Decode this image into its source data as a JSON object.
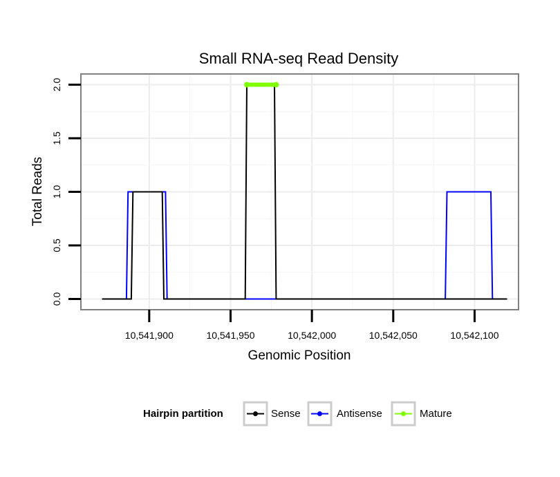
{
  "chart_data": {
    "type": "line",
    "title": "Small RNA-seq Read Density",
    "xlabel": "Genomic Position",
    "ylabel": "Total Reads",
    "xlim": [
      10541858,
      10542127
    ],
    "ylim": [
      -0.1,
      2.1
    ],
    "x_ticks": [
      10541900,
      10541950,
      10542000,
      10542050,
      10542100
    ],
    "x_tick_labels": [
      "10,541,900",
      "10,541,950",
      "10,542,000",
      "10,542,050",
      "10,542,100"
    ],
    "y_ticks": [
      0,
      0.5,
      1,
      1.5,
      2
    ],
    "y_tick_labels": [
      "0.0",
      "0.5",
      "1.0",
      "1.5",
      "2.0"
    ],
    "grid": true,
    "legend": {
      "title": "Hairpin partition",
      "position": "bottom",
      "entries": [
        "Sense",
        "Antisense",
        "Mature"
      ]
    },
    "series": [
      {
        "name": "Antisense",
        "color": "#0000ff",
        "x": [
          10541871,
          10541886,
          10541887,
          10541910,
          10541911,
          10541970,
          10542082,
          10542083,
          10542110,
          10542111,
          10542120
        ],
        "y": [
          0,
          0,
          1,
          1,
          0,
          0,
          0,
          1,
          1,
          0,
          0
        ]
      },
      {
        "name": "Sense",
        "color": "#000000",
        "x": [
          10541871,
          10541889,
          10541890,
          10541908,
          10541909,
          10541959,
          10541960,
          10541977,
          10541978,
          10542120
        ],
        "y": [
          0,
          0,
          1,
          1,
          0,
          0,
          2,
          2,
          0,
          0
        ]
      },
      {
        "name": "Mature",
        "color": "#7fff00",
        "x": [
          10541960,
          10541978
        ],
        "y": [
          2,
          2
        ]
      }
    ]
  }
}
